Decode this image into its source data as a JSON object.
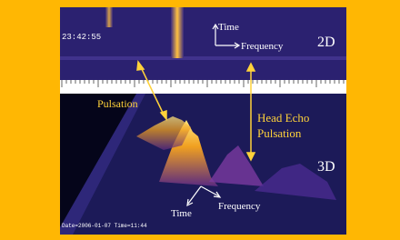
{
  "panel_2d": {
    "timestamp": "23:42:55",
    "axis_time": "Time",
    "axis_frequency": "Frequency",
    "label": "2D"
  },
  "annotations": {
    "pulsation": "Pulsation",
    "head_echo": [
      "Head Echo",
      "Pulsation"
    ]
  },
  "panel_3d": {
    "label": "3D",
    "axis_time": "Time",
    "axis_frequency": "Frequency",
    "footer": "Date=2006-01-07 Time=11:44"
  }
}
